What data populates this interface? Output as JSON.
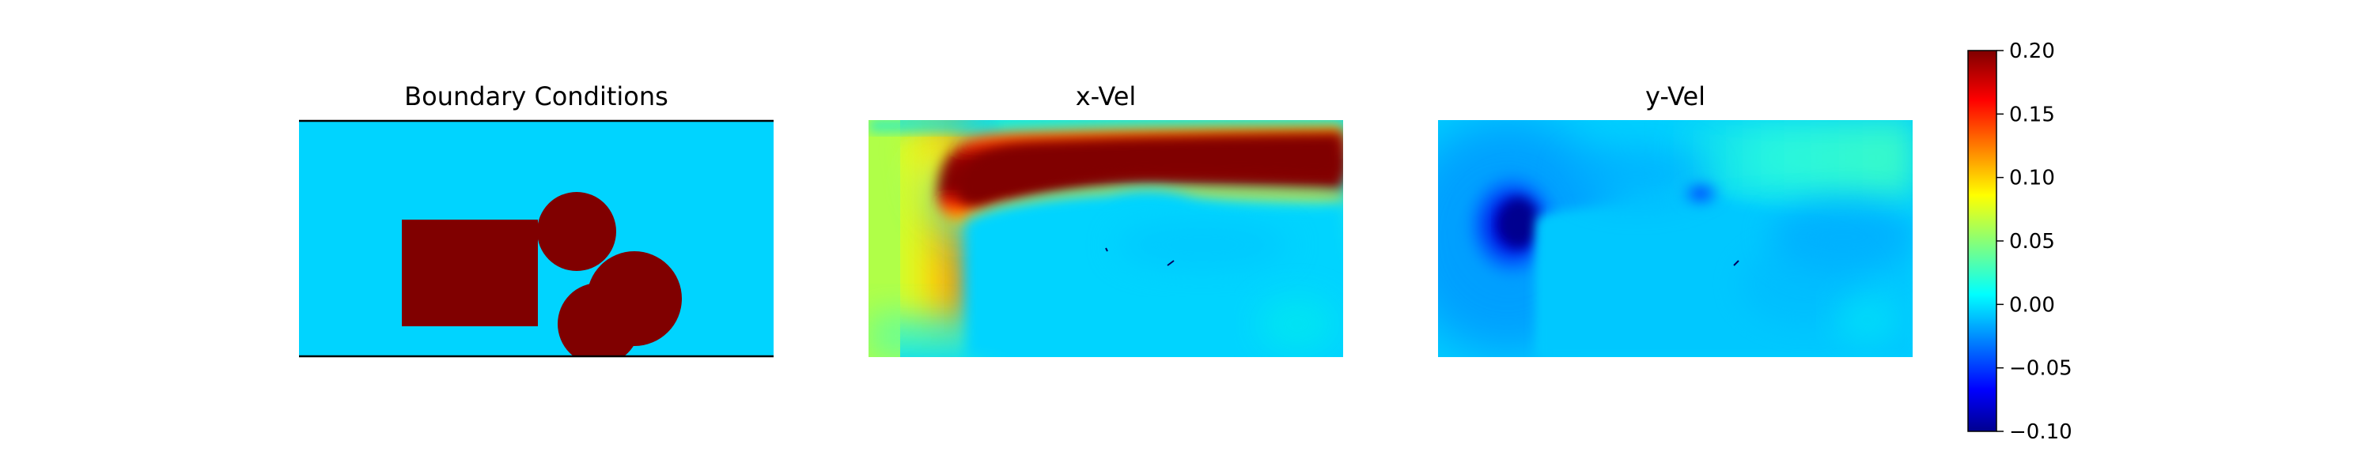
{
  "colors": {
    "background": "#00d4ff",
    "obstacle": "#800000",
    "boundary_line": "#000000"
  },
  "colormap": "jet",
  "chart_data": [
    {
      "type": "heatmap",
      "title": "Boundary Conditions",
      "content": "Channel flow domain: walls at top and bottom; obstacles are one rectangle and three circles",
      "obstacles": [
        "rectangle",
        "circle",
        "circle",
        "circle"
      ],
      "colormap": "jet"
    },
    {
      "type": "heatmap",
      "title": "x-Vel",
      "colormap": "jet",
      "value_range": [
        -0.1,
        0.2
      ]
    },
    {
      "type": "heatmap",
      "title": "y-Vel",
      "colormap": "jet",
      "value_range": [
        -0.1,
        0.2
      ]
    }
  ],
  "colorbar": {
    "min": -0.1,
    "max": 0.2,
    "ticks": [
      "0.20",
      "0.15",
      "0.10",
      "0.05",
      "0.00",
      "−0.05",
      "−0.10"
    ]
  }
}
